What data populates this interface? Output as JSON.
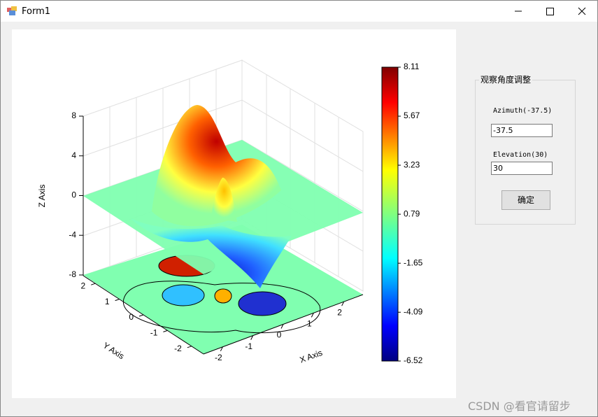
{
  "window": {
    "title": "Form1"
  },
  "chart": {
    "z_axis_label": "Z Axis",
    "y_axis_label": "Y Axis",
    "x_axis_label": "X Axis",
    "zticks": [
      8,
      4,
      0,
      -4,
      -8
    ],
    "yticks": [
      2,
      1,
      0,
      -1,
      -2
    ],
    "xticks": [
      -2,
      -1,
      0,
      1,
      2
    ],
    "colorbar_ticks": [
      8.11,
      5.67,
      3.23,
      0.79,
      -1.65,
      -4.09,
      -6.52
    ]
  },
  "panel": {
    "title": "观察角度调整",
    "azimuth_label": "Azimuth(-37.5)",
    "azimuth_value": "-37.5",
    "elevation_label": "Elevation(30)",
    "elevation_value": "30",
    "button": "确定"
  },
  "watermark": "CSDN @看官请留步"
}
